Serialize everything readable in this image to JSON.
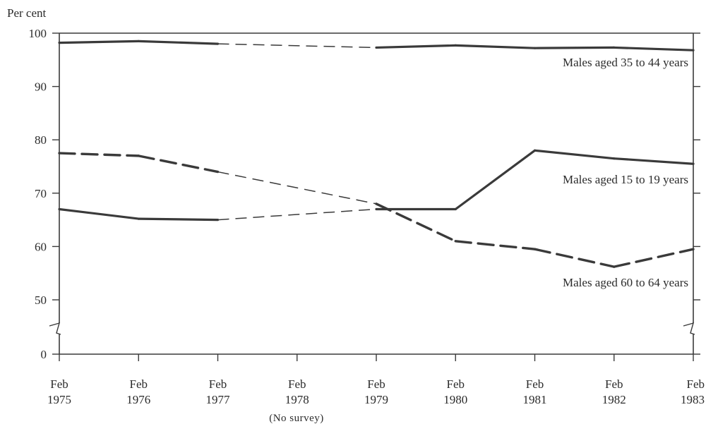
{
  "chart_data": {
    "type": "line",
    "ylabel": "Per cent",
    "x_categories": [
      {
        "line1": "Feb",
        "line2": "1975"
      },
      {
        "line1": "Feb",
        "line2": "1976"
      },
      {
        "line1": "Feb",
        "line2": "1977"
      },
      {
        "line1": "Feb",
        "line2": "1978"
      },
      {
        "line1": "Feb",
        "line2": "1979"
      },
      {
        "line1": "Feb",
        "line2": "1980"
      },
      {
        "line1": "Feb",
        "line2": "1981"
      },
      {
        "line1": "Feb",
        "line2": "1982"
      },
      {
        "line1": "Feb",
        "line2": "1983"
      }
    ],
    "no_survey_note": "(No survey)",
    "y_ticks": [
      "0",
      "50",
      "60",
      "70",
      "80",
      "90",
      "100"
    ],
    "ylim": [
      50,
      100
    ],
    "y_axis_break": true,
    "grid": false,
    "series": [
      {
        "name": "Males aged 35 to 44 years",
        "style": "solid",
        "values": [
          98.2,
          98.5,
          98.0,
          null,
          97.3,
          97.7,
          97.2,
          97.3,
          96.8
        ]
      },
      {
        "name": "Males aged 15 to 19 years",
        "style": "solid",
        "values": [
          67.0,
          65.2,
          65.0,
          null,
          67.0,
          67.0,
          78.0,
          76.5,
          75.5
        ]
      },
      {
        "name": "Males aged 60 to 64 years",
        "style": "dashed",
        "values": [
          77.5,
          77.0,
          74.0,
          null,
          68.0,
          61.0,
          59.5,
          56.2,
          59.5
        ]
      }
    ],
    "colors": {
      "line": "#3a3a3a",
      "text": "#2b2b2b"
    }
  }
}
